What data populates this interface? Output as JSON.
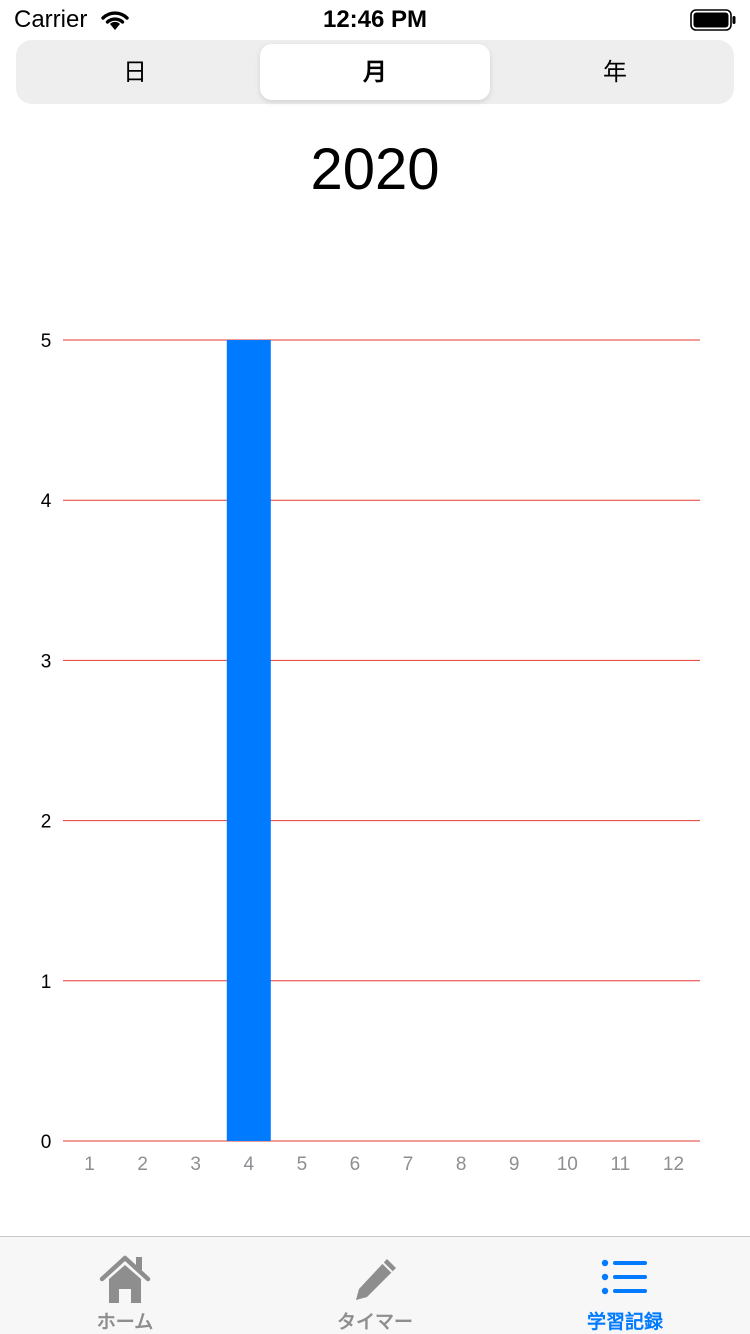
{
  "status_bar": {
    "carrier": "Carrier",
    "time": "12:46 PM"
  },
  "segments": {
    "items": [
      {
        "label": "日",
        "selected": false
      },
      {
        "label": "月",
        "selected": true
      },
      {
        "label": "年",
        "selected": false
      }
    ]
  },
  "year_title": "2020",
  "colors": {
    "accent": "#007aff",
    "gridline": "#e53935",
    "inactive_tab": "#8e8e8e",
    "tick_x": "#8e8e93"
  },
  "chart_data": {
    "type": "bar",
    "categories": [
      "1",
      "2",
      "3",
      "4",
      "5",
      "6",
      "7",
      "8",
      "9",
      "10",
      "11",
      "12"
    ],
    "values": [
      0,
      0,
      0,
      5,
      0,
      0,
      0,
      0,
      0,
      0,
      0,
      0
    ],
    "ylim": [
      0,
      5
    ],
    "yticks": [
      "0",
      "1",
      "2",
      "3",
      "4",
      "5"
    ],
    "grid": true,
    "bar_color": "#007aff",
    "gridline_color": "#e53935"
  },
  "tab_bar": {
    "items": [
      {
        "label": "ホーム",
        "icon": "home-icon",
        "active": false
      },
      {
        "label": "タイマー",
        "icon": "pencil-icon",
        "active": false
      },
      {
        "label": "学習記録",
        "icon": "list-icon",
        "active": true
      }
    ]
  }
}
